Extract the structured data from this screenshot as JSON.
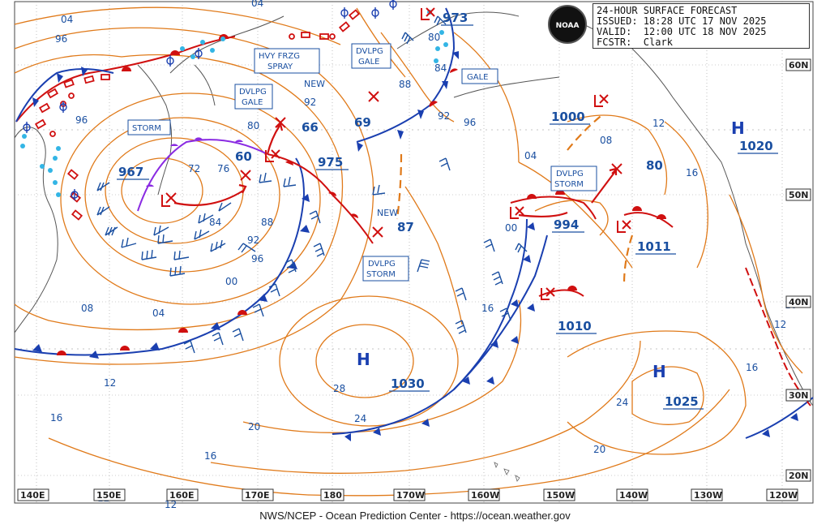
{
  "header": {
    "title": "24-HOUR SURFACE FORECAST",
    "issued": "ISSUED: 18:28 UTC 17 NOV 2025",
    "valid": "VALID:  12:00 UTC 18 NOV 2025",
    "forecaster": "FCSTR:  Clark",
    "logo_text": "NOAA"
  },
  "footer": "NWS/NCEP - Ocean Prediction Center - https://ocean.weather.gov",
  "longitude_labels": [
    "140E",
    "150E",
    "160E",
    "170E",
    "180",
    "170W",
    "160W",
    "150W",
    "140W",
    "130W",
    "120W"
  ],
  "latitude_labels": [
    "60N",
    "50N",
    "40N",
    "30N",
    "20N"
  ],
  "pressure_centers": [
    {
      "kind": "L",
      "value": "967",
      "color": "#d01010"
    },
    {
      "kind": "L",
      "value": "975",
      "color": "#d01010"
    },
    {
      "kind": "L",
      "value": "973",
      "color": "#d01010"
    },
    {
      "kind": "L",
      "value": "1000",
      "color": "#d01010"
    },
    {
      "kind": "L",
      "value": "994",
      "color": "#d01010"
    },
    {
      "kind": "L",
      "value": "1011",
      "color": "#d01010"
    },
    {
      "kind": "H",
      "value": "1030",
      "color": "#1a3fb0"
    },
    {
      "kind": "H",
      "value": "1025",
      "color": "#1a3fb0"
    },
    {
      "kind": "H",
      "value": "1020",
      "color": "#1a3fb0"
    }
  ],
  "forecast_numbers": [
    "60",
    "66",
    "69",
    "87",
    "80",
    "1010",
    "00"
  ],
  "warnings": [
    "STORM",
    "DVLPG|GALE",
    "HVY FRZG|SPRAY",
    "DVLPG|GALE",
    "GALE",
    "DVLPG|STORM",
    "DVLPG|STORM"
  ],
  "new_labels": [
    "NEW",
    "NEW"
  ],
  "isobar_labels": [
    "04",
    "96",
    "96",
    "72",
    "76",
    "80",
    "84",
    "88",
    "92",
    "96",
    "00",
    "08",
    "04",
    "12",
    "16",
    "12",
    "12",
    "16",
    "20",
    "24",
    "28",
    "88",
    "92",
    "96",
    "80",
    "84",
    "92",
    "04",
    "08",
    "12",
    "16",
    "16",
    "12",
    "16",
    "20",
    "24",
    "04",
    "16"
  ],
  "colors": {
    "isobar": "#e07a1a",
    "low": "#d01010",
    "high": "#1a3fb0",
    "cold_front": "#1a3fb0",
    "warm_front": "#d01010",
    "occluded": "#8a2be2",
    "wind_barb": "#1a4fa0",
    "land": "#555555",
    "ice": "#33b5e5"
  }
}
